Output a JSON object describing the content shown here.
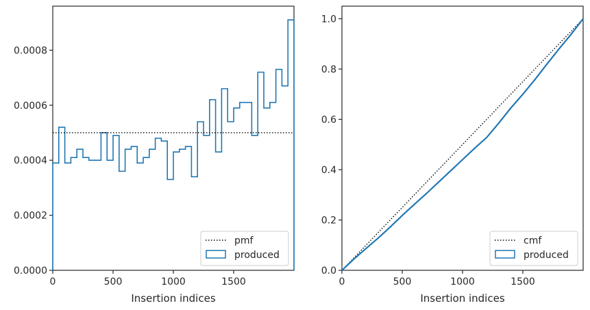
{
  "chart_data": [
    {
      "type": "step",
      "title": "",
      "xlabel": "Insertion indices",
      "ylabel": "",
      "xlim": [
        0,
        2000
      ],
      "ylim": [
        0,
        0.00096
      ],
      "xticks": [
        0,
        500,
        1000,
        1500
      ],
      "xtick_labels": [
        "0",
        "500",
        "1000",
        "1500"
      ],
      "yticks": [
        0,
        0.0002,
        0.0004,
        0.0006,
        0.0008
      ],
      "ytick_labels": [
        "0.0000",
        "0.0002",
        "0.0004",
        "0.0006",
        "0.0008"
      ],
      "legend_position": "lower-right",
      "grid": false,
      "bin_edges": [
        0,
        50,
        100,
        150,
        200,
        250,
        300,
        350,
        400,
        450,
        500,
        550,
        600,
        650,
        700,
        750,
        800,
        850,
        900,
        950,
        1000,
        1050,
        1100,
        1150,
        1200,
        1250,
        1300,
        1350,
        1400,
        1450,
        1500,
        1550,
        1600,
        1650,
        1700,
        1750,
        1800,
        1850,
        1900,
        1950,
        2000
      ],
      "series": [
        {
          "name": "pmf",
          "style": "dotted",
          "color": "#000000",
          "value": 0.0005
        },
        {
          "name": "produced",
          "style": "step",
          "color": "#1f77b4",
          "values": [
            0.00039,
            0.00052,
            0.00039,
            0.00041,
            0.00044,
            0.00041,
            0.0004,
            0.0004,
            0.0005,
            0.0004,
            0.00049,
            0.00036,
            0.00044,
            0.00045,
            0.00039,
            0.00041,
            0.00044,
            0.00048,
            0.00047,
            0.00033,
            0.00043,
            0.00044,
            0.00045,
            0.00034,
            0.00054,
            0.00049,
            0.00062,
            0.00043,
            0.00066,
            0.00054,
            0.00059,
            0.00061,
            0.00061,
            0.00049,
            0.00072,
            0.00059,
            0.00061,
            0.00073,
            0.00067,
            0.00091
          ]
        }
      ]
    },
    {
      "type": "step",
      "title": "",
      "xlabel": "Insertion indices",
      "ylabel": "",
      "xlim": [
        0,
        2000
      ],
      "ylim": [
        0,
        1.05
      ],
      "xticks": [
        0,
        500,
        1000,
        1500
      ],
      "xtick_labels": [
        "0",
        "500",
        "1000",
        "1500"
      ],
      "yticks": [
        0,
        0.2,
        0.4,
        0.6,
        0.8,
        1.0
      ],
      "ytick_labels": [
        "0.0",
        "0.2",
        "0.4",
        "0.6",
        "0.8",
        "1.0"
      ],
      "legend_position": "lower-right",
      "grid": false,
      "series": [
        {
          "name": "cmf",
          "style": "dotted",
          "color": "#000000",
          "x": [
            0,
            2000
          ],
          "y": [
            0,
            1.0
          ]
        },
        {
          "name": "produced",
          "style": "step",
          "color": "#1f77b4",
          "x": [
            0,
            100,
            200,
            300,
            400,
            500,
            600,
            700,
            800,
            900,
            1000,
            1100,
            1200,
            1300,
            1400,
            1500,
            1600,
            1700,
            1800,
            1900,
            2000
          ],
          "y": [
            0,
            0.045,
            0.087,
            0.128,
            0.172,
            0.218,
            0.262,
            0.305,
            0.35,
            0.395,
            0.44,
            0.485,
            0.528,
            0.585,
            0.645,
            0.7,
            0.758,
            0.82,
            0.88,
            0.938,
            1.0
          ]
        }
      ]
    }
  ]
}
